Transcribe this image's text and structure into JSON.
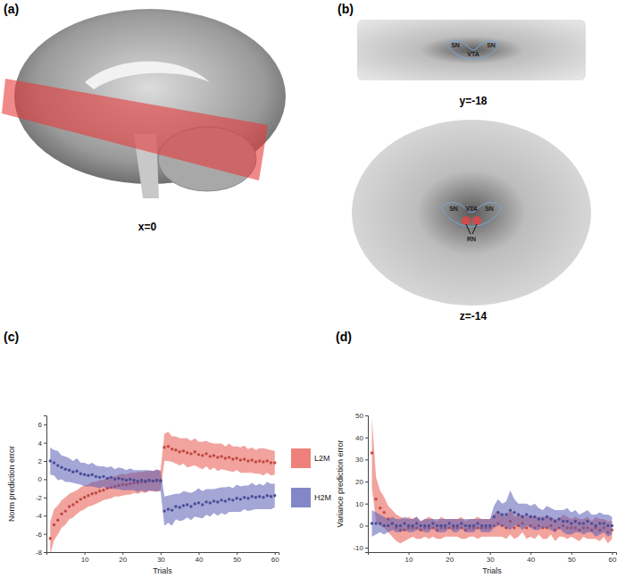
{
  "images": [
    {
      "label": "(a)",
      "caption": "x=0"
    },
    {
      "label": "(b)",
      "slices": [
        {
          "caption": "y=-18",
          "regions": [
            "SN",
            "VTA",
            "SN"
          ]
        },
        {
          "caption": "z=-14",
          "regions": [
            "SN",
            "VTA",
            "SN",
            "RN"
          ]
        }
      ]
    }
  ],
  "chart_data": [
    {
      "type": "line",
      "title": "(c)",
      "x_label": "Trials",
      "y_label": "Norm prediction error",
      "x": [
        1,
        2,
        3,
        4,
        5,
        6,
        7,
        8,
        9,
        10,
        11,
        12,
        13,
        14,
        15,
        16,
        17,
        18,
        19,
        20,
        21,
        22,
        23,
        24,
        25,
        26,
        27,
        28,
        29,
        30,
        31,
        32,
        33,
        34,
        35,
        36,
        37,
        38,
        39,
        40,
        41,
        42,
        43,
        44,
        45,
        46,
        47,
        48,
        49,
        50,
        51,
        52,
        53,
        54,
        55,
        56,
        57,
        58,
        59,
        60
      ],
      "xlim": [
        0,
        61
      ],
      "xticks": [
        10,
        20,
        30,
        40,
        50,
        60
      ],
      "ylim": [
        -8,
        7
      ],
      "yticks": [
        -8,
        -6,
        -4,
        -2,
        0,
        2,
        4,
        6
      ],
      "legend": "right",
      "series": [
        {
          "name": "L2M",
          "color": "#e8574f",
          "marker": "circle",
          "values": [
            -6.5,
            -5,
            -4.5,
            -3.8,
            -3.5,
            -3,
            -2.8,
            -2.5,
            -2.2,
            -2,
            -1.8,
            -1.6,
            -1.5,
            -1.3,
            -1.2,
            -1,
            -0.9,
            -0.8,
            -0.7,
            -0.6,
            -0.6,
            -0.5,
            -0.4,
            -0.4,
            -0.3,
            -0.3,
            -0.2,
            -0.2,
            -0.2,
            -0.1,
            3.5,
            3.6,
            3.3,
            3.2,
            3.0,
            3.1,
            2.9,
            2.8,
            3.0,
            2.7,
            2.6,
            2.8,
            2.5,
            2.6,
            2.4,
            2.5,
            2.3,
            2.4,
            2.2,
            2.3,
            2.1,
            2.2,
            2.0,
            2.1,
            1.9,
            2.0,
            1.9,
            2.0,
            1.8,
            1.8
          ],
          "error": [
            1.8,
            1.7,
            1.6,
            1.5,
            1.5,
            1.4,
            1.4,
            1.3,
            1.3,
            1.3,
            1.2,
            1.3,
            1.2,
            1.2,
            1.1,
            1.2,
            1.2,
            1.1,
            1.2,
            1.2,
            1.1,
            1.2,
            1.1,
            1.2,
            1.1,
            1.2,
            1.1,
            1.1,
            1.2,
            1.1,
            1.5,
            1.6,
            1.4,
            1.5,
            1.5,
            1.4,
            1.6,
            1.4,
            1.5,
            1.4,
            1.5,
            1.4,
            1.5,
            1.3,
            1.5,
            1.4,
            1.3,
            1.5,
            1.4,
            1.3,
            1.4,
            1.5,
            1.3,
            1.4,
            1.3,
            1.4,
            1.5,
            1.3,
            1.4,
            1.3
          ]
        },
        {
          "name": "H2M",
          "color": "#5a5db4",
          "marker": "circle",
          "values": [
            2.0,
            1.8,
            1.5,
            1.3,
            1.1,
            1.0,
            0.8,
            0.9,
            0.6,
            0.5,
            0.4,
            0.5,
            0.3,
            0.2,
            0.3,
            0.1,
            0.2,
            0.0,
            0.1,
            0.0,
            -0.1,
            0.0,
            -0.1,
            -0.2,
            -0.1,
            -0.2,
            -0.1,
            -0.2,
            -0.1,
            -0.2,
            -3.5,
            -3.3,
            -3.4,
            -3.0,
            -3.1,
            -2.9,
            -2.8,
            -3.0,
            -2.7,
            -2.6,
            -2.8,
            -2.5,
            -2.6,
            -2.4,
            -2.5,
            -2.3,
            -2.4,
            -2.2,
            -2.3,
            -2.1,
            -2.2,
            -2.0,
            -2.1,
            -1.9,
            -2.0,
            -1.9,
            -2.0,
            -1.8,
            -1.9,
            -1.8
          ],
          "error": [
            1.5,
            1.4,
            1.6,
            1.3,
            1.4,
            1.3,
            1.2,
            1.4,
            1.2,
            1.3,
            1.2,
            1.3,
            1.2,
            1.2,
            1.1,
            1.2,
            1.2,
            1.1,
            1.2,
            1.2,
            1.1,
            1.2,
            1.1,
            1.2,
            1.1,
            1.2,
            1.1,
            1.1,
            1.2,
            1.1,
            1.6,
            1.5,
            1.7,
            1.4,
            1.5,
            1.6,
            1.4,
            1.5,
            1.4,
            1.6,
            1.5,
            1.4,
            1.5,
            1.3,
            1.5,
            1.4,
            1.5,
            1.4,
            1.3,
            1.5,
            1.4,
            1.3,
            1.4,
            1.5,
            1.3,
            1.4,
            1.3,
            1.5,
            1.4,
            1.3
          ]
        }
      ]
    },
    {
      "type": "line",
      "title": "(d)",
      "x_label": "Trials",
      "y_label": "Variance prediction error",
      "x": [
        1,
        2,
        3,
        4,
        5,
        6,
        7,
        8,
        9,
        10,
        11,
        12,
        13,
        14,
        15,
        16,
        17,
        18,
        19,
        20,
        21,
        22,
        23,
        24,
        25,
        26,
        27,
        28,
        29,
        30,
        31,
        32,
        33,
        34,
        35,
        36,
        37,
        38,
        39,
        40,
        41,
        42,
        43,
        44,
        45,
        46,
        47,
        48,
        49,
        50,
        51,
        52,
        53,
        54,
        55,
        56,
        57,
        58,
        59,
        60
      ],
      "xlim": [
        0,
        61
      ],
      "xticks": [
        10,
        20,
        30,
        40,
        50,
        60
      ],
      "ylim": [
        -12,
        50
      ],
      "yticks": [
        -10,
        0,
        10,
        20,
        30,
        40,
        50
      ],
      "series": [
        {
          "color": "#e8574f",
          "marker": "circle",
          "values": [
            33,
            12,
            8,
            6,
            3,
            1,
            -1,
            -2,
            -2,
            -1,
            -1,
            -1,
            -2,
            -1,
            -1,
            -1,
            -2,
            -1,
            -1,
            -1,
            -1,
            -1,
            -1,
            -2,
            -1,
            -1,
            -1,
            -1,
            -1,
            -1,
            0,
            1,
            0,
            -1,
            2,
            -1,
            0,
            1,
            -1,
            0,
            -1,
            0,
            -1,
            -1,
            0,
            -2,
            -1,
            0,
            -1,
            -1,
            -1,
            -2,
            -1,
            -1,
            -2,
            -1,
            -2,
            -1,
            -3,
            -2
          ],
          "error": [
            16,
            10,
            8,
            7,
            6,
            6,
            6,
            6,
            5,
            5,
            4,
            5,
            4,
            4,
            5,
            4,
            4,
            5,
            4,
            4,
            4,
            4,
            5,
            4,
            4,
            4,
            5,
            4,
            4,
            4,
            5,
            6,
            5,
            5,
            6,
            5,
            5,
            4,
            5,
            5,
            5,
            4,
            5,
            5,
            4,
            5,
            4,
            5,
            5,
            4,
            5,
            5,
            4,
            5,
            4,
            5,
            5,
            4,
            5,
            4
          ]
        },
        {
          "color": "#5a5db4",
          "marker": "circle",
          "values": [
            1,
            1,
            1,
            0,
            0,
            1,
            0,
            0,
            1,
            0,
            0,
            1,
            0,
            0,
            0,
            1,
            0,
            0,
            0,
            1,
            0,
            0,
            1,
            0,
            0,
            0,
            1,
            0,
            0,
            0,
            4,
            6,
            5,
            5,
            7,
            6,
            5,
            4,
            5,
            4,
            4,
            3,
            3,
            4,
            3,
            2,
            3,
            2,
            2,
            1,
            2,
            1,
            1,
            2,
            1,
            0,
            1,
            1,
            0,
            0
          ],
          "error": [
            6,
            5,
            4,
            4,
            3,
            3,
            3,
            3,
            3,
            3,
            3,
            3,
            2,
            3,
            3,
            2,
            3,
            3,
            3,
            2,
            3,
            3,
            2,
            3,
            3,
            3,
            2,
            3,
            3,
            3,
            5,
            6,
            5,
            6,
            9,
            6,
            5,
            6,
            5,
            5,
            6,
            5,
            4,
            5,
            5,
            5,
            4,
            5,
            6,
            5,
            5,
            4,
            5,
            5,
            4,
            5,
            5,
            4,
            5,
            4
          ]
        }
      ]
    }
  ]
}
